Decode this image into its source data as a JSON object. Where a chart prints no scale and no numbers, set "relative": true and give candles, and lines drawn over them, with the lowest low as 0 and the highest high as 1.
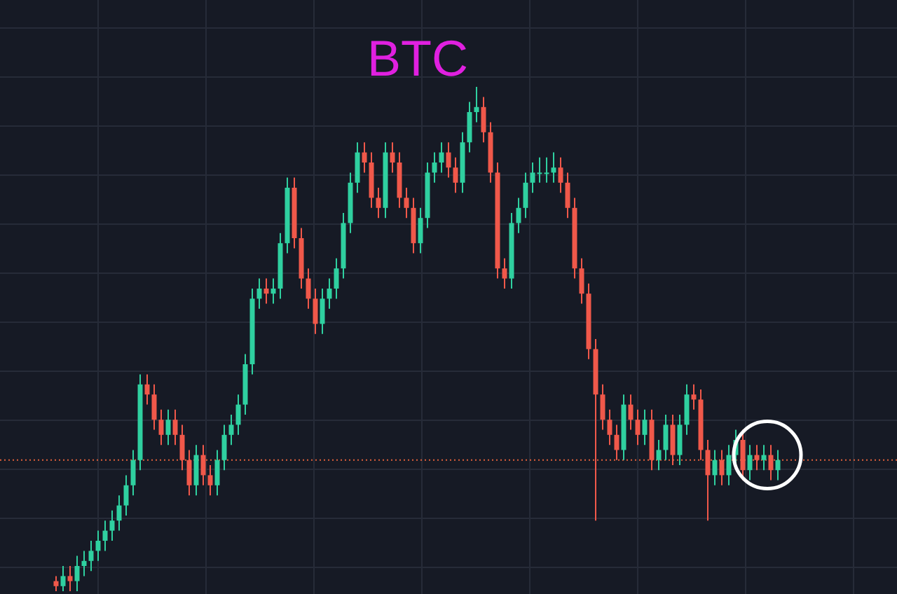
{
  "chart_data": {
    "type": "candlestick",
    "title": "BTC",
    "relative": true,
    "grid": true,
    "categories": [
      null,
      null,
      null,
      null,
      null,
      null,
      null,
      null,
      null,
      null,
      null,
      null,
      null,
      null,
      null,
      null,
      null,
      null,
      null,
      null,
      null,
      null,
      null,
      null,
      null,
      null,
      null,
      null,
      null,
      null,
      null,
      null,
      null,
      null,
      null,
      null,
      null,
      null,
      null,
      null,
      null,
      null,
      null,
      null,
      null,
      null,
      null,
      null,
      null,
      null,
      null,
      null,
      null,
      null,
      null,
      null,
      null,
      null,
      null,
      null,
      null,
      null,
      null,
      null,
      null,
      null,
      null,
      null,
      null,
      null,
      null,
      null,
      null,
      null,
      null,
      null,
      null,
      null,
      null,
      null,
      null,
      null,
      null,
      null,
      null,
      null,
      null,
      null,
      null,
      null,
      null,
      null,
      null,
      null,
      null,
      null,
      null,
      null,
      null,
      null,
      null,
      null,
      null,
      null
    ],
    "ohlc": [
      [
        0.02,
        0.03,
        0.0,
        0.01
      ],
      [
        0.01,
        0.05,
        0.0,
        0.03
      ],
      [
        0.03,
        0.05,
        0.0,
        0.02
      ],
      [
        0.02,
        0.07,
        0.0,
        0.05
      ],
      [
        0.05,
        0.08,
        0.03,
        0.06
      ],
      [
        0.06,
        0.1,
        0.04,
        0.08
      ],
      [
        0.08,
        0.12,
        0.06,
        0.1
      ],
      [
        0.1,
        0.14,
        0.08,
        0.12
      ],
      [
        0.12,
        0.16,
        0.1,
        0.14
      ],
      [
        0.14,
        0.19,
        0.12,
        0.17
      ],
      [
        0.17,
        0.23,
        0.15,
        0.21
      ],
      [
        0.21,
        0.28,
        0.19,
        0.26
      ],
      [
        0.26,
        0.43,
        0.24,
        0.41
      ],
      [
        0.41,
        0.43,
        0.37,
        0.39
      ],
      [
        0.39,
        0.41,
        0.32,
        0.34
      ],
      [
        0.34,
        0.36,
        0.29,
        0.31
      ],
      [
        0.31,
        0.36,
        0.29,
        0.34
      ],
      [
        0.34,
        0.36,
        0.29,
        0.31
      ],
      [
        0.31,
        0.33,
        0.24,
        0.26
      ],
      [
        0.26,
        0.28,
        0.19,
        0.21
      ],
      [
        0.21,
        0.29,
        0.19,
        0.27
      ],
      [
        0.27,
        0.29,
        0.21,
        0.23
      ],
      [
        0.23,
        0.25,
        0.19,
        0.21
      ],
      [
        0.21,
        0.28,
        0.19,
        0.26
      ],
      [
        0.26,
        0.33,
        0.24,
        0.31
      ],
      [
        0.31,
        0.35,
        0.29,
        0.33
      ],
      [
        0.33,
        0.39,
        0.31,
        0.37
      ],
      [
        0.37,
        0.47,
        0.35,
        0.45
      ],
      [
        0.45,
        0.6,
        0.43,
        0.58
      ],
      [
        0.58,
        0.62,
        0.56,
        0.6
      ],
      [
        0.6,
        0.62,
        0.57,
        0.59
      ],
      [
        0.59,
        0.62,
        0.57,
        0.6
      ],
      [
        0.6,
        0.71,
        0.58,
        0.69
      ],
      [
        0.69,
        0.82,
        0.67,
        0.8
      ],
      [
        0.8,
        0.82,
        0.68,
        0.7
      ],
      [
        0.7,
        0.72,
        0.6,
        0.62
      ],
      [
        0.62,
        0.64,
        0.56,
        0.58
      ],
      [
        0.58,
        0.6,
        0.51,
        0.53
      ],
      [
        0.53,
        0.6,
        0.51,
        0.58
      ],
      [
        0.58,
        0.62,
        0.56,
        0.6
      ],
      [
        0.6,
        0.66,
        0.58,
        0.64
      ],
      [
        0.64,
        0.75,
        0.62,
        0.73
      ],
      [
        0.73,
        0.83,
        0.71,
        0.81
      ],
      [
        0.81,
        0.89,
        0.79,
        0.87
      ],
      [
        0.87,
        0.89,
        0.83,
        0.85
      ],
      [
        0.85,
        0.87,
        0.76,
        0.78
      ],
      [
        0.78,
        0.8,
        0.74,
        0.76
      ],
      [
        0.76,
        0.89,
        0.74,
        0.87
      ],
      [
        0.87,
        0.89,
        0.83,
        0.85
      ],
      [
        0.85,
        0.87,
        0.76,
        0.78
      ],
      [
        0.78,
        0.8,
        0.74,
        0.76
      ],
      [
        0.76,
        0.78,
        0.67,
        0.69
      ],
      [
        0.69,
        0.76,
        0.67,
        0.74
      ],
      [
        0.74,
        0.85,
        0.72,
        0.83
      ],
      [
        0.83,
        0.87,
        0.81,
        0.85
      ],
      [
        0.85,
        0.89,
        0.83,
        0.87
      ],
      [
        0.87,
        0.89,
        0.82,
        0.84
      ],
      [
        0.84,
        0.86,
        0.79,
        0.81
      ],
      [
        0.81,
        0.91,
        0.79,
        0.89
      ],
      [
        0.89,
        0.97,
        0.87,
        0.95
      ],
      [
        0.95,
        1.0,
        0.93,
        0.96
      ],
      [
        0.96,
        0.98,
        0.89,
        0.91
      ],
      [
        0.91,
        0.93,
        0.81,
        0.83
      ],
      [
        0.83,
        0.85,
        0.62,
        0.64
      ],
      [
        0.64,
        0.66,
        0.6,
        0.62
      ],
      [
        0.62,
        0.75,
        0.6,
        0.73
      ],
      [
        0.73,
        0.78,
        0.71,
        0.76
      ],
      [
        0.76,
        0.83,
        0.74,
        0.81
      ],
      [
        0.81,
        0.85,
        0.79,
        0.83
      ],
      [
        0.83,
        0.86,
        0.81,
        0.83
      ],
      [
        0.83,
        0.86,
        0.81,
        0.83
      ],
      [
        0.83,
        0.87,
        0.81,
        0.84
      ],
      [
        0.84,
        0.86,
        0.79,
        0.81
      ],
      [
        0.81,
        0.83,
        0.74,
        0.76
      ],
      [
        0.76,
        0.78,
        0.62,
        0.64
      ],
      [
        0.64,
        0.66,
        0.57,
        0.59
      ],
      [
        0.59,
        0.61,
        0.46,
        0.48
      ],
      [
        0.48,
        0.5,
        0.14,
        0.39
      ],
      [
        0.39,
        0.41,
        0.32,
        0.34
      ],
      [
        0.34,
        0.36,
        0.29,
        0.31
      ],
      [
        0.31,
        0.33,
        0.26,
        0.28
      ],
      [
        0.28,
        0.39,
        0.26,
        0.37
      ],
      [
        0.37,
        0.39,
        0.32,
        0.34
      ],
      [
        0.34,
        0.36,
        0.29,
        0.31
      ],
      [
        0.31,
        0.36,
        0.29,
        0.34
      ],
      [
        0.34,
        0.36,
        0.24,
        0.26
      ],
      [
        0.26,
        0.3,
        0.24,
        0.28
      ],
      [
        0.28,
        0.35,
        0.26,
        0.33
      ],
      [
        0.33,
        0.35,
        0.25,
        0.27
      ],
      [
        0.27,
        0.35,
        0.25,
        0.33
      ],
      [
        0.33,
        0.41,
        0.31,
        0.39
      ],
      [
        0.39,
        0.41,
        0.36,
        0.38
      ],
      [
        0.38,
        0.4,
        0.26,
        0.28
      ],
      [
        0.28,
        0.3,
        0.14,
        0.23
      ],
      [
        0.23,
        0.28,
        0.21,
        0.26
      ],
      [
        0.26,
        0.28,
        0.21,
        0.23
      ],
      [
        0.23,
        0.29,
        0.21,
        0.27
      ],
      [
        0.27,
        0.32,
        0.25,
        0.3
      ],
      [
        0.3,
        0.32,
        0.22,
        0.24
      ],
      [
        0.24,
        0.29,
        0.22,
        0.27
      ],
      [
        0.27,
        0.29,
        0.24,
        0.26
      ],
      [
        0.26,
        0.29,
        0.24,
        0.27
      ],
      [
        0.27,
        0.29,
        0.22,
        0.24
      ],
      [
        0.24,
        0.28,
        0.22,
        0.26
      ]
    ],
    "ref_lines": [
      {
        "axis": "y",
        "value": 0.26,
        "color": "#e0603a",
        "line_style": "dotted"
      }
    ]
  }
}
